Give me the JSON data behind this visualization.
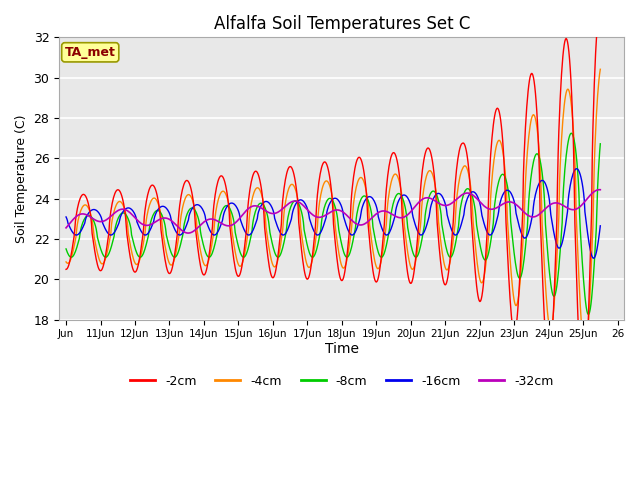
{
  "title": "Alfalfa Soil Temperatures Set C",
  "xlabel": "Time",
  "ylabel": "Soil Temperature (C)",
  "ylim": [
    18,
    32
  ],
  "annotation": "TA_met",
  "annotation_color": "#8B0000",
  "annotation_bg": "#FFFF99",
  "plot_bg": "#E8E8E8",
  "fig_bg": "#FFFFFF",
  "colors": {
    "-2cm": "#FF0000",
    "-4cm": "#FF8800",
    "-8cm": "#00CC00",
    "-16cm": "#0000EE",
    "-32cm": "#BB00BB"
  },
  "tick_labels": [
    "Jun",
    "11Jun",
    "12Jun",
    "13Jun",
    "14Jun",
    "15Jun",
    "16Jun",
    "17Jun",
    "18Jun",
    "19Jun",
    "20Jun",
    "21Jun",
    "22Jun",
    "23Jun",
    "24Jun",
    "25Jun",
    "26"
  ],
  "legend_labels": [
    "-2cm",
    "-4cm",
    "-8cm",
    "-16cm",
    "-32cm"
  ]
}
